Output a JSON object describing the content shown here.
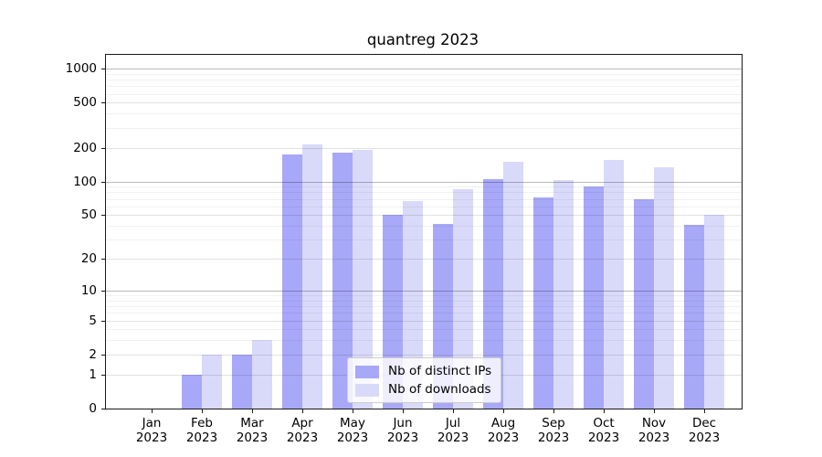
{
  "title": "quantreg 2023",
  "chart_data": {
    "type": "bar",
    "categories": [
      "Jan 2023",
      "Feb 2023",
      "Mar 2023",
      "Apr 2023",
      "May 2023",
      "Jun 2023",
      "Jul 2023",
      "Aug 2023",
      "Sep 2023",
      "Oct 2023",
      "Nov 2023",
      "Dec 2023"
    ],
    "series": [
      {
        "name": "Nb of distinct IPs",
        "color": "#a8a8f8",
        "values": [
          0,
          1,
          2,
          175,
          180,
          50,
          42,
          104,
          72,
          90,
          69,
          41
        ]
      },
      {
        "name": "Nb of downloads",
        "color": "#d9d9fa",
        "values": [
          0,
          2,
          3,
          215,
          190,
          67,
          86,
          150,
          103,
          155,
          134,
          50
        ]
      }
    ],
    "yscale": "log1p",
    "ylim": [
      0,
      1258
    ],
    "yticks": [
      0,
      1,
      2,
      5,
      10,
      20,
      50,
      100,
      200,
      500,
      1000
    ],
    "gridlines": {
      "major": [
        10,
        100,
        1000
      ],
      "labeled": [
        1,
        2,
        5,
        20,
        50,
        200,
        500
      ],
      "minor": [
        3,
        4,
        6,
        7,
        8,
        9,
        30,
        40,
        60,
        70,
        80,
        90,
        300,
        400,
        600,
        700,
        800,
        900
      ]
    },
    "legend": {
      "position": "lower center",
      "entries": [
        "Nb of distinct IPs",
        "Nb of downloads"
      ]
    },
    "grid": "both",
    "xlabel": "",
    "ylabel": ""
  }
}
